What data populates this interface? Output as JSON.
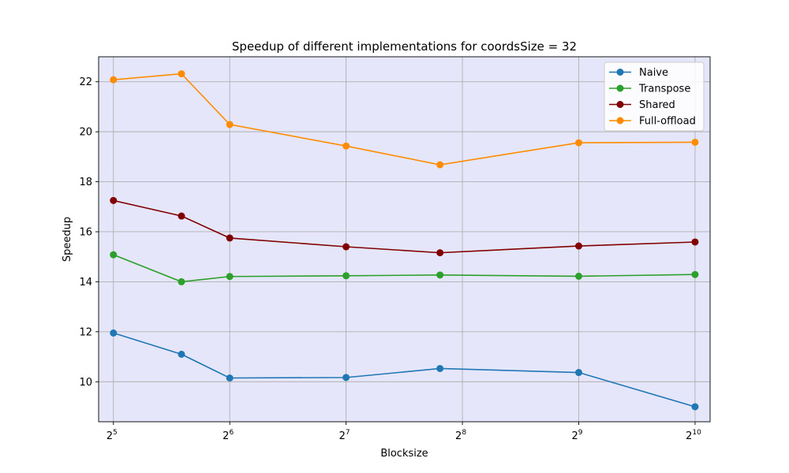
{
  "chart_data": {
    "type": "line",
    "title": "Speedup of different implementations for coordsSize = 32",
    "xlabel": "Blocksize",
    "ylabel": "Speedup",
    "x": [
      32,
      48,
      64,
      128,
      224,
      512,
      1024
    ],
    "x_scale": "log2",
    "xlim": [
      29.3,
      1120
    ],
    "ylim": [
      8.4,
      23.0
    ],
    "xticks": [
      {
        "value": 32,
        "base": "2",
        "exp": "5"
      },
      {
        "value": 64,
        "base": "2",
        "exp": "6"
      },
      {
        "value": 128,
        "base": "2",
        "exp": "7"
      },
      {
        "value": 256,
        "base": "2",
        "exp": "8"
      },
      {
        "value": 512,
        "base": "2",
        "exp": "9"
      },
      {
        "value": 1024,
        "base": "2",
        "exp": "10"
      }
    ],
    "yticks": [
      10,
      12,
      14,
      16,
      18,
      20,
      22
    ],
    "grid": true,
    "background": "#e6e6fa",
    "legend_position": "top-right",
    "series": [
      {
        "name": "Naive",
        "color": "#1f77b4",
        "values": [
          11.95,
          11.1,
          10.15,
          10.17,
          10.53,
          10.37,
          9.0
        ]
      },
      {
        "name": "Transpose",
        "color": "#2ca02c",
        "values": [
          15.08,
          14.0,
          14.21,
          14.24,
          14.27,
          14.22,
          14.29
        ]
      },
      {
        "name": "Shared",
        "color": "#800000",
        "values": [
          17.25,
          16.63,
          15.75,
          15.4,
          15.16,
          15.43,
          15.59
        ]
      },
      {
        "name": "Full-offload",
        "color": "#ff8c00",
        "values": [
          22.08,
          22.32,
          20.29,
          19.43,
          18.68,
          19.56,
          19.58
        ]
      }
    ]
  }
}
